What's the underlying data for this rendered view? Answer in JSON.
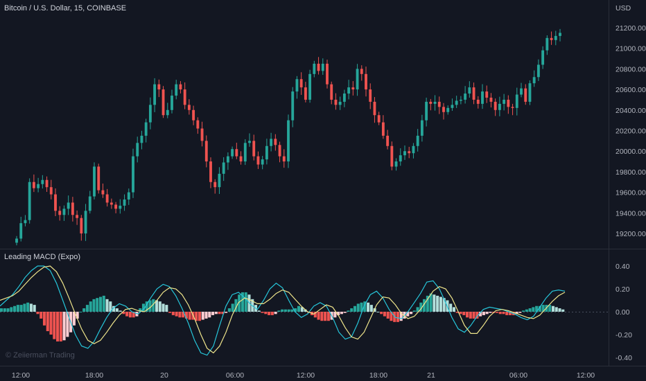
{
  "chart_data": [
    {
      "type": "candlestick",
      "title": "Bitcoin / U.S. Dollar, 15, COINBASE",
      "currency_label": "USD",
      "ylim": [
        19000,
        21300
      ],
      "y_ticks": [
        "21200.00",
        "21000.00",
        "20800.00",
        "20600.00",
        "20400.00",
        "20200.00",
        "20000.00",
        "19800.00",
        "19600.00",
        "19400.00",
        "19200.00"
      ],
      "y_tick_values": [
        21200,
        21000,
        20800,
        20600,
        20400,
        20200,
        20000,
        19800,
        19600,
        19400,
        19200
      ],
      "up_color": "#26a69a",
      "down_color": "#ef5350",
      "closes": [
        19150,
        19300,
        19330,
        19700,
        19640,
        19680,
        19720,
        19650,
        19580,
        19420,
        19380,
        19440,
        19500,
        19380,
        19350,
        19200,
        19420,
        19560,
        19850,
        19620,
        19580,
        19500,
        19480,
        19440,
        19470,
        19530,
        19600,
        19950,
        20080,
        20150,
        20280,
        20450,
        20650,
        20600,
        20350,
        20400,
        20540,
        20650,
        20600,
        20450,
        20400,
        20300,
        20220,
        20100,
        19900,
        19700,
        19650,
        19780,
        19890,
        19950,
        20020,
        19950,
        19900,
        20080,
        20100,
        19950,
        19870,
        19920,
        20050,
        20120,
        20060,
        19950,
        19900,
        20300,
        20580,
        20700,
        20620,
        20500,
        20750,
        20850,
        20780,
        20850,
        20650,
        20500,
        20450,
        20480,
        20560,
        20620,
        20600,
        20800,
        20750,
        20600,
        20480,
        20350,
        20280,
        20150,
        20050,
        19850,
        19900,
        19960,
        20000,
        19980,
        20050,
        20150,
        20300,
        20480,
        20460,
        20480,
        20430,
        20380,
        20420,
        20450,
        20490,
        20500,
        20560,
        20620,
        20500,
        20460,
        20580,
        20520,
        20480,
        20400,
        20460,
        20500,
        20430,
        20420,
        20550,
        20610,
        20480,
        20660,
        20720,
        20840,
        20980,
        21100,
        21080,
        21120,
        21150
      ]
    },
    {
      "type": "bar",
      "title": "Leading MACD (Expo)",
      "ylim": [
        -0.45,
        0.5
      ],
      "y_ticks": [
        "0.40",
        "0.20",
        "0.00",
        "-0.20",
        "-0.40"
      ],
      "y_tick_values": [
        0.4,
        0.2,
        0.0,
        -0.2,
        -0.4
      ],
      "histogram": [
        0.03,
        0.03,
        0.03,
        0.04,
        0.05,
        0.06,
        0.06,
        0.07,
        0.08,
        0.07,
        0.06,
        -0.02,
        -0.06,
        -0.12,
        -0.17,
        -0.2,
        -0.24,
        -0.26,
        -0.26,
        -0.25,
        -0.22,
        -0.18,
        -0.12,
        -0.06,
        0.0,
        0.03,
        0.06,
        0.09,
        0.11,
        0.12,
        0.13,
        0.14,
        0.11,
        0.09,
        0.05,
        0.03,
        0.01,
        -0.02,
        -0.04,
        -0.05,
        -0.05,
        -0.04,
        0.03,
        0.07,
        0.09,
        0.1,
        0.11,
        0.1,
        0.09,
        0.07,
        0.06,
        -0.01,
        -0.03,
        -0.04,
        -0.05,
        -0.05,
        -0.06,
        -0.07,
        -0.07,
        -0.08,
        -0.08,
        -0.07,
        -0.06,
        -0.05,
        -0.03,
        -0.02,
        -0.02,
        -0.02,
        -0.01,
        0.03,
        0.07,
        0.11,
        0.15,
        0.17,
        0.17,
        0.15,
        0.11,
        0.06,
        0.01,
        -0.01,
        -0.02,
        -0.03,
        -0.03,
        -0.02,
        0.01,
        0.02,
        0.02,
        0.02,
        0.02,
        0.03,
        0.05,
        0.04,
        0.02,
        -0.01,
        -0.03,
        -0.05,
        -0.07,
        -0.08,
        -0.08,
        -0.08,
        -0.07,
        -0.05,
        -0.03,
        -0.02,
        -0.01,
        0.01,
        0.03,
        0.05,
        0.07,
        0.08,
        0.09,
        0.08,
        0.06,
        0.03,
        0.0,
        -0.02,
        -0.04,
        -0.06,
        -0.08,
        -0.09,
        -0.09,
        -0.08,
        -0.06,
        -0.04,
        -0.02,
        0.01,
        0.04,
        0.08,
        0.11,
        0.14,
        0.16,
        0.15,
        0.14,
        0.13,
        0.12,
        0.1,
        0.07,
        0.04,
        -0.01,
        -0.02,
        -0.03,
        -0.05,
        -0.06,
        -0.06,
        -0.06,
        -0.04,
        -0.03,
        -0.02,
        -0.01,
        -0.01,
        -0.01,
        -0.02,
        -0.02,
        -0.03,
        -0.03,
        -0.03,
        -0.02,
        -0.01,
        0.01,
        0.02,
        0.03,
        0.04,
        0.05,
        0.05,
        0.06,
        0.06,
        0.06,
        0.05,
        0.04,
        0.03,
        0.02
      ],
      "macd_line_color": "#26c6da",
      "signal_line_color": "#f0e68c",
      "macd_line": [
        0.05,
        0.1,
        0.15,
        0.22,
        0.3,
        0.36,
        0.4,
        0.4,
        0.36,
        0.25,
        0.1,
        -0.05,
        -0.2,
        -0.3,
        -0.32,
        -0.26,
        -0.15,
        -0.05,
        0.03,
        0.07,
        0.05,
        0.0,
        -0.02,
        0.03,
        0.12,
        0.2,
        0.24,
        0.22,
        0.14,
        0.03,
        -0.1,
        -0.25,
        -0.36,
        -0.38,
        -0.3,
        -0.12,
        0.05,
        0.15,
        0.17,
        0.12,
        0.06,
        0.02,
        0.1,
        0.2,
        0.25,
        0.21,
        0.1,
        0.0,
        -0.05,
        -0.02,
        0.05,
        0.08,
        0.05,
        -0.05,
        -0.18,
        -0.24,
        -0.22,
        -0.1,
        0.05,
        0.15,
        0.18,
        0.12,
        0.02,
        -0.05,
        -0.06,
        0.0,
        0.08,
        0.16,
        0.26,
        0.27,
        0.2,
        0.08,
        -0.05,
        -0.15,
        -0.18,
        -0.12,
        -0.04,
        0.02,
        0.04,
        0.03,
        0.02,
        0.0,
        -0.02,
        -0.05,
        -0.07,
        -0.04,
        0.04,
        0.12,
        0.18,
        0.19,
        0.18
      ],
      "signal_line": [
        0.1,
        0.12,
        0.14,
        0.18,
        0.24,
        0.3,
        0.35,
        0.39,
        0.4,
        0.35,
        0.25,
        0.12,
        -0.02,
        -0.15,
        -0.25,
        -0.28,
        -0.25,
        -0.18,
        -0.1,
        -0.03,
        0.02,
        0.03,
        0.01,
        0.0,
        0.04,
        0.1,
        0.17,
        0.21,
        0.2,
        0.15,
        0.06,
        -0.06,
        -0.2,
        -0.32,
        -0.36,
        -0.3,
        -0.18,
        -0.03,
        0.08,
        0.12,
        0.1,
        0.07,
        0.07,
        0.11,
        0.16,
        0.19,
        0.17,
        0.11,
        0.05,
        0.0,
        -0.02,
        0.02,
        0.06,
        0.04,
        -0.04,
        -0.14,
        -0.22,
        -0.24,
        -0.18,
        -0.06,
        0.06,
        0.13,
        0.12,
        0.06,
        -0.02,
        -0.06,
        -0.04,
        0.02,
        0.1,
        0.18,
        0.22,
        0.2,
        0.12,
        0.0,
        -0.12,
        -0.19,
        -0.19,
        -0.12,
        -0.04,
        0.01,
        0.02,
        0.01,
        -0.01,
        -0.03,
        -0.05,
        -0.06,
        -0.03,
        0.03,
        0.09,
        0.14,
        0.17
      ]
    }
  ],
  "x_ticks": [
    "12:00",
    "18:00",
    "20",
    "06:00",
    "12:00",
    "18:00",
    "21",
    "06:00",
    "12:00"
  ],
  "watermark": "© Zeiierman Trading"
}
